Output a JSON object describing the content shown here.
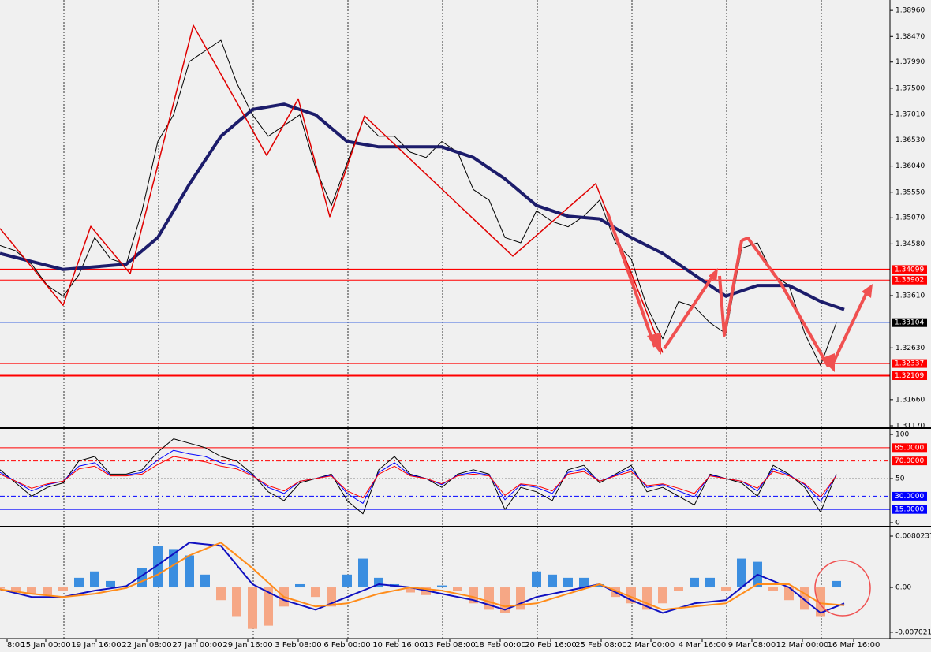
{
  "xaxis": {
    "xlim": [
      0,
      112.8
    ],
    "xticks": [
      {
        "value": 0.9,
        "label": "8:00"
      },
      {
        "value": 5.8,
        "label": "15 Jan 00:00"
      },
      {
        "value": 12.2,
        "label": "19 Jan 16:00"
      },
      {
        "value": 18.6,
        "label": "22 Jan 08:00"
      },
      {
        "value": 25,
        "label": "27 Jan 00:00"
      },
      {
        "value": 31.4,
        "label": "29 Jan 16:00"
      },
      {
        "value": 37.8,
        "label": "3 Feb 08:00"
      },
      {
        "value": 44,
        "label": "6 Feb 00:00"
      },
      {
        "value": 50.5,
        "label": "10 Feb 16:00"
      },
      {
        "value": 57,
        "label": "13 Feb 08:00"
      },
      {
        "value": 63.4,
        "label": "18 Feb 00:00"
      },
      {
        "value": 69.8,
        "label": "20 Feb 16:00"
      },
      {
        "value": 76.2,
        "label": "25 Feb 08:00"
      },
      {
        "value": 82.5,
        "label": "2 Mar 00:00"
      },
      {
        "value": 89,
        "label": "4 Mar 16:00"
      },
      {
        "value": 95.3,
        "label": "9 Mar 08:00"
      },
      {
        "value": 101.7,
        "label": "12 Mar 00:00"
      },
      {
        "value": 108.2,
        "label": "16 Mar 16:00"
      }
    ],
    "grid": [
      8.1,
      20.1,
      32.1,
      44.1,
      56.1,
      68.1,
      80.1,
      92.1,
      104.1
    ]
  },
  "chart_data": [
    {
      "type": "line",
      "ylim": [
        1.3117,
        1.3911
      ],
      "yticks": [
        {
          "value": 1.3896,
          "label": "1.38960"
        },
        {
          "value": 1.3847,
          "label": "1.38470"
        },
        {
          "value": 1.3799,
          "label": "1.37990"
        },
        {
          "value": 1.375,
          "label": "1.37500"
        },
        {
          "value": 1.3701,
          "label": "1.37010"
        },
        {
          "value": 1.3653,
          "label": "1.36530"
        },
        {
          "value": 1.3604,
          "label": "1.36040"
        },
        {
          "value": 1.3555,
          "label": "1.35550"
        },
        {
          "value": 1.3507,
          "label": "1.35070"
        },
        {
          "value": 1.3458,
          "label": "1.34580"
        },
        {
          "value": 1.3361,
          "label": "1.33610"
        },
        {
          "value": 1.3263,
          "label": "1.32630"
        },
        {
          "value": 1.3166,
          "label": "1.31660"
        },
        {
          "value": 1.3117,
          "label": "1.31170"
        }
      ],
      "levels": [
        {
          "value": 1.34099,
          "label": "1.34099",
          "color": "#ff0000",
          "width": 2
        },
        {
          "value": 1.33902,
          "label": "1.33902",
          "color": "#ff0000",
          "width": 1
        },
        {
          "value": 1.33104,
          "label": "1.33104",
          "color": "#4169e1",
          "box": "#000000",
          "width": 0.6
        },
        {
          "value": 1.32337,
          "label": "1.32337",
          "color": "#ff0000",
          "width": 1
        },
        {
          "value": 1.32109,
          "label": "1.32109",
          "color": "#ff0000",
          "width": 2
        }
      ],
      "series": [
        {
          "color": "#000000",
          "width": 1,
          "x": [
            0,
            2,
            4,
            6,
            8,
            10,
            12,
            14,
            16,
            18,
            20,
            22,
            24,
            26,
            28,
            30,
            32,
            34,
            36,
            38,
            40,
            42,
            44,
            46,
            48,
            50,
            52,
            54,
            56,
            58,
            60,
            62,
            64,
            66,
            68,
            70,
            72,
            74,
            76,
            78,
            80,
            82,
            84,
            86,
            88,
            90,
            92,
            94,
            96,
            98,
            100,
            102,
            104,
            106
          ],
          "values": [
            1.3455,
            1.3445,
            1.342,
            1.338,
            1.336,
            1.34,
            1.347,
            1.343,
            1.342,
            1.352,
            1.365,
            1.37,
            1.38,
            1.382,
            1.384,
            1.376,
            1.37,
            1.366,
            1.368,
            1.37,
            1.36,
            1.353,
            1.361,
            1.369,
            1.366,
            1.366,
            1.363,
            1.362,
            1.365,
            1.363,
            1.356,
            1.354,
            1.347,
            1.346,
            1.352,
            1.35,
            1.349,
            1.351,
            1.354,
            1.346,
            1.343,
            1.334,
            1.328,
            1.335,
            1.334,
            1.331,
            1.329,
            1.345,
            1.346,
            1.34,
            1.338,
            1.329,
            1.323,
            1.331
          ]
        },
        {
          "color": "#1c1c6b",
          "width": 4,
          "x": [
            0,
            4,
            8,
            12,
            16,
            20,
            24,
            28,
            32,
            36,
            40,
            44,
            48,
            52,
            56,
            60,
            64,
            68,
            72,
            76,
            80,
            84,
            88,
            92,
            96,
            100,
            104,
            107
          ],
          "values": [
            1.344,
            1.3425,
            1.341,
            1.3415,
            1.342,
            1.347,
            1.357,
            1.366,
            1.371,
            1.372,
            1.37,
            1.365,
            1.364,
            1.364,
            1.364,
            1.362,
            1.358,
            1.353,
            1.351,
            1.3505,
            1.347,
            1.344,
            1.34,
            1.336,
            1.338,
            1.338,
            1.335,
            1.3335
          ]
        },
        {
          "color": "#e00000",
          "width": 1.5,
          "x": [
            0,
            8,
            11.5,
            16.5,
            24.5,
            33.8,
            37.8,
            41.8,
            46.2,
            65,
            75.5,
            84
          ],
          "values": [
            1.3487,
            1.3343,
            1.3491,
            1.3402,
            1.3868,
            1.3624,
            1.373,
            1.3509,
            1.3698,
            1.3435,
            1.3571,
            1.3254
          ]
        }
      ]
    },
    {
      "type": "line",
      "ylim": [
        -2.7,
        104.5
      ],
      "yticks": [
        100,
        50,
        0
      ],
      "levels": [
        {
          "value": 85,
          "label": "85.0000",
          "color": "#ff0000",
          "dash": "",
          "box": "#ff0000"
        },
        {
          "value": 70,
          "label": "70.0000",
          "color": "#ff0000",
          "dash": "6 3 2 3",
          "box": "#ff0000"
        },
        {
          "value": 30,
          "label": "30.0000",
          "color": "#0000ff",
          "dash": "6 3 2 3",
          "box": "#0000ff"
        },
        {
          "value": 15,
          "label": "15.0000",
          "color": "#0000ff",
          "dash": "",
          "box": "#0000ff"
        }
      ],
      "series": [
        {
          "color": "#000000",
          "width": 1,
          "x": [
            0,
            2,
            4,
            6,
            8,
            10,
            12,
            14,
            16,
            18,
            20,
            22,
            24,
            26,
            28,
            30,
            32,
            34,
            36,
            38,
            40,
            42,
            44,
            46,
            48,
            50,
            52,
            54,
            56,
            58,
            60,
            62,
            64,
            66,
            68,
            70,
            72,
            74,
            76,
            78,
            80,
            82,
            84,
            86,
            88,
            90,
            92,
            94,
            96,
            98,
            100,
            102,
            104,
            106
          ],
          "values": [
            60,
            45,
            30,
            40,
            45,
            70,
            75,
            55,
            55,
            60,
            80,
            95,
            90,
            85,
            75,
            70,
            55,
            35,
            25,
            45,
            50,
            55,
            25,
            10,
            60,
            75,
            55,
            50,
            40,
            55,
            60,
            55,
            15,
            40,
            35,
            25,
            60,
            65,
            45,
            55,
            65,
            35,
            40,
            30,
            20,
            55,
            50,
            45,
            30,
            65,
            55,
            40,
            12,
            55
          ]
        },
        {
          "color": "#0000ff",
          "width": 1,
          "x": [
            0,
            2,
            4,
            6,
            8,
            10,
            12,
            14,
            16,
            18,
            20,
            22,
            24,
            26,
            28,
            30,
            32,
            34,
            36,
            38,
            40,
            42,
            44,
            46,
            48,
            50,
            52,
            54,
            56,
            58,
            60,
            62,
            64,
            66,
            68,
            70,
            72,
            74,
            76,
            78,
            80,
            82,
            84,
            86,
            88,
            90,
            92,
            94,
            96,
            98,
            100,
            102,
            104,
            106
          ],
          "values": [
            57,
            47,
            36,
            43,
            47,
            64,
            68,
            54,
            54,
            57,
            71,
            82,
            78,
            75,
            68,
            64,
            54,
            40,
            33,
            47,
            50,
            54,
            33,
            22,
            57,
            68,
            54,
            50,
            43,
            54,
            57,
            54,
            26,
            43,
            40,
            33,
            57,
            61,
            47,
            54,
            61,
            40,
            43,
            36,
            29,
            54,
            50,
            47,
            36,
            61,
            54,
            43,
            24,
            54
          ]
        },
        {
          "color": "#ff0000",
          "width": 1,
          "x": [
            0,
            2,
            4,
            6,
            8,
            10,
            12,
            14,
            16,
            18,
            20,
            22,
            24,
            26,
            28,
            30,
            32,
            34,
            36,
            38,
            40,
            42,
            44,
            46,
            48,
            50,
            52,
            54,
            56,
            58,
            60,
            62,
            64,
            66,
            68,
            70,
            72,
            74,
            76,
            78,
            80,
            82,
            84,
            86,
            88,
            90,
            92,
            94,
            96,
            98,
            100,
            102,
            104,
            106
          ],
          "values": [
            55,
            47,
            39,
            44,
            47,
            61,
            64,
            53,
            53,
            55,
            66,
            75,
            72,
            69,
            64,
            61,
            53,
            42,
            36,
            47,
            50,
            53,
            36,
            28,
            55,
            64,
            53,
            50,
            44,
            53,
            55,
            53,
            31,
            44,
            42,
            36,
            55,
            58,
            47,
            53,
            58,
            42,
            44,
            39,
            33,
            53,
            50,
            47,
            39,
            58,
            53,
            44,
            29,
            53
          ]
        }
      ]
    },
    {
      "type": "bar",
      "ylim": [
        -0.00802,
        0.00926
      ],
      "yticks": [
        {
          "value": 0.0080237,
          "label": "0.0080237"
        },
        {
          "value": 0,
          "label": "0.00"
        },
        {
          "value": -0.007021,
          "label": "-0.007021"
        }
      ],
      "x": [
        0,
        2,
        4,
        6,
        8,
        10,
        12,
        14,
        16,
        18,
        20,
        22,
        24,
        26,
        28,
        30,
        32,
        34,
        36,
        38,
        40,
        42,
        44,
        46,
        48,
        50,
        52,
        54,
        56,
        58,
        60,
        62,
        64,
        66,
        68,
        70,
        72,
        74,
        76,
        78,
        80,
        82,
        84,
        86,
        88,
        90,
        92,
        94,
        96,
        98,
        100,
        102,
        104,
        106
      ],
      "values": [
        -0.0002,
        -0.0005,
        -0.001,
        -0.0012,
        -0.0005,
        0.0015,
        0.0025,
        0.001,
        0.0002,
        0.003,
        0.0065,
        0.006,
        0.005,
        0.002,
        -0.002,
        -0.0045,
        -0.0065,
        -0.006,
        -0.003,
        0.0005,
        -0.0015,
        -0.003,
        0.002,
        0.0045,
        0.0015,
        0.0005,
        -0.0008,
        -0.0012,
        0.0003,
        -0.0005,
        -0.0025,
        -0.0035,
        -0.004,
        -0.0035,
        0.0025,
        0.002,
        0.0015,
        0.0015,
        0.0005,
        -0.0015,
        -0.0025,
        -0.0035,
        -0.0025,
        -0.0005,
        0.0015,
        0.0015,
        -0.0005,
        0.0045,
        0.004,
        -0.0005,
        -0.002,
        -0.0035,
        -0.0045,
        0.001
      ],
      "positive_color": "#3b8ee0",
      "negative_color": "#f6a785",
      "series": [
        {
          "color": "#1010c0",
          "width": 2,
          "x": [
            0,
            4,
            8,
            12,
            16,
            20,
            24,
            28,
            32,
            36,
            40,
            44,
            48,
            52,
            56,
            60,
            64,
            68,
            72,
            76,
            80,
            84,
            88,
            92,
            96,
            100,
            104,
            107
          ],
          "values": [
            -0.0003,
            -0.0015,
            -0.0015,
            -0.0005,
            0.0002,
            0.0035,
            0.007,
            0.0065,
            0.0005,
            -0.002,
            -0.0035,
            -0.0015,
            0.0005,
            0,
            -0.001,
            -0.002,
            -0.0035,
            -0.0015,
            -0.0005,
            0.0005,
            -0.002,
            -0.004,
            -0.0025,
            -0.002,
            0.002,
            0,
            -0.004,
            -0.0025
          ]
        },
        {
          "color": "#ff8c1a",
          "width": 2,
          "x": [
            0,
            4,
            8,
            12,
            16,
            20,
            24,
            28,
            32,
            36,
            40,
            44,
            48,
            52,
            56,
            60,
            64,
            68,
            72,
            76,
            80,
            84,
            88,
            92,
            96,
            100,
            104,
            107
          ],
          "values": [
            -0.0003,
            -0.001,
            -0.0015,
            -0.001,
            -0.0001,
            0.002,
            0.005,
            0.007,
            0.003,
            -0.0015,
            -0.003,
            -0.0025,
            -0.001,
            0,
            -0.0005,
            -0.0015,
            -0.003,
            -0.0025,
            -0.001,
            0.0005,
            -0.0015,
            -0.0035,
            -0.003,
            -0.0025,
            0.0005,
            0.0005,
            -0.0025,
            -0.0028
          ]
        }
      ]
    }
  ]
}
